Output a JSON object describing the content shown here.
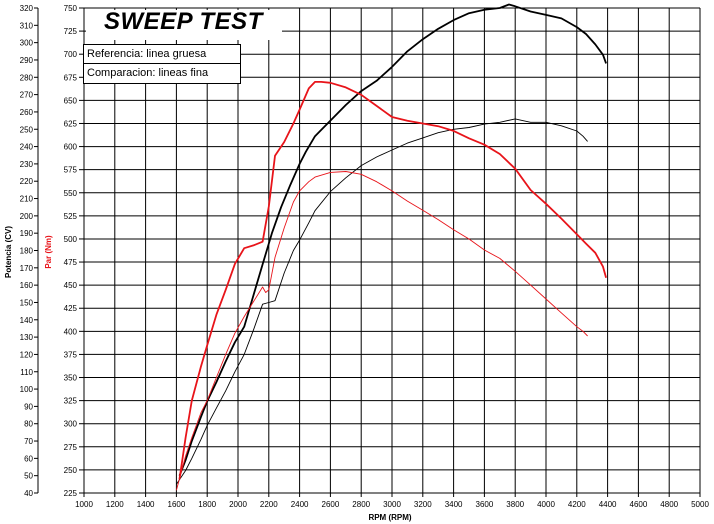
{
  "chart_data": {
    "type": "line",
    "title": "SWEEP TEST",
    "xlabel": "RPM (RPM)",
    "ylabel_left": "Potencia (CV)",
    "ylabel_right": "Par (Nm)",
    "xlim": [
      1000,
      5000
    ],
    "ylim_power": [
      40,
      320
    ],
    "ylim_torque": [
      225,
      750
    ],
    "x_ticks": [
      1000,
      1200,
      1400,
      1600,
      1800,
      2000,
      2200,
      2400,
      2600,
      2800,
      3000,
      3200,
      3400,
      3600,
      3800,
      4000,
      4200,
      4400,
      4600,
      4800,
      5000
    ],
    "power_ticks": [
      40,
      50,
      60,
      70,
      80,
      90,
      100,
      110,
      120,
      130,
      140,
      150,
      160,
      170,
      180,
      190,
      200,
      210,
      220,
      230,
      240,
      250,
      260,
      270,
      280,
      290,
      300,
      310,
      320
    ],
    "torque_ticks": [
      225,
      250,
      275,
      300,
      325,
      350,
      375,
      400,
      425,
      450,
      475,
      500,
      525,
      550,
      575,
      600,
      625,
      650,
      675,
      700,
      725,
      750
    ],
    "grid": true,
    "legend": [
      "Referencia: linea gruesa",
      "Comparacion: lineas fina"
    ],
    "colors": {
      "power": "#000000",
      "torque": "#e8141a",
      "grid": "#000000"
    },
    "series": [
      {
        "quantity": "power",
        "axis": "left",
        "weight": "thick",
        "x": [
          1620,
          1660,
          1700,
          1760,
          1800,
          1860,
          1920,
          1980,
          2040,
          2100,
          2160,
          2220,
          2280,
          2340,
          2400,
          2440,
          2500,
          2600,
          2700,
          2800,
          2900,
          3000,
          3100,
          3200,
          3300,
          3400,
          3500,
          3600,
          3700,
          3760,
          3800,
          3900,
          4000,
          4100,
          4200,
          4260,
          4320,
          4370,
          4390
        ],
        "y": [
          50,
          59,
          70,
          84,
          93,
          104,
          116,
          127,
          136,
          154,
          172,
          190,
          205,
          218,
          230,
          237,
          246,
          255,
          264,
          272,
          278,
          286,
          295,
          302,
          308,
          313,
          317,
          319,
          320,
          322,
          321,
          318,
          316,
          314,
          309,
          305,
          299,
          293,
          288
        ]
      },
      {
        "quantity": "power",
        "axis": "left",
        "weight": "thin",
        "x": [
          1600,
          1660,
          1700,
          1760,
          1800,
          1860,
          1920,
          1980,
          2040,
          2100,
          2160,
          2200,
          2240,
          2300,
          2360,
          2400,
          2460,
          2500,
          2600,
          2700,
          2800,
          2900,
          3000,
          3100,
          3200,
          3300,
          3400,
          3500,
          3600,
          3700,
          3800,
          3900,
          4000,
          4100,
          4200,
          4240,
          4270
        ],
        "y": [
          45,
          53,
          60,
          71,
          79,
          89,
          99,
          110,
          120,
          134,
          149,
          150,
          151,
          167,
          180,
          186,
          196,
          203,
          214,
          222,
          229,
          234,
          238,
          242,
          245,
          248,
          250,
          251,
          253,
          254,
          256,
          254,
          254,
          252,
          249,
          246,
          243
        ]
      },
      {
        "quantity": "torque",
        "axis": "right",
        "weight": "thick",
        "x": [
          1620,
          1660,
          1700,
          1760,
          1800,
          1860,
          1920,
          1980,
          2040,
          2100,
          2160,
          2200,
          2240,
          2300,
          2360,
          2400,
          2460,
          2500,
          2540,
          2600,
          2700,
          2800,
          2900,
          3000,
          3100,
          3200,
          3300,
          3400,
          3500,
          3600,
          3700,
          3800,
          3900,
          4000,
          4100,
          4200,
          4260,
          4320,
          4370,
          4390
        ],
        "y": [
          240,
          285,
          325,
          362,
          385,
          418,
          445,
          473,
          490,
          493,
          497,
          535,
          590,
          605,
          625,
          640,
          663,
          670,
          670,
          669,
          664,
          656,
          644,
          632,
          628,
          625,
          622,
          617,
          609,
          602,
          592,
          576,
          553,
          538,
          522,
          505,
          495,
          485,
          470,
          458
        ]
      },
      {
        "quantity": "torque",
        "axis": "right",
        "weight": "thin",
        "x": [
          1600,
          1660,
          1700,
          1760,
          1800,
          1860,
          1920,
          1980,
          2040,
          2100,
          2160,
          2180,
          2200,
          2240,
          2300,
          2360,
          2400,
          2460,
          2500,
          2600,
          2700,
          2800,
          2900,
          3000,
          3100,
          3200,
          3300,
          3400,
          3500,
          3600,
          3700,
          3800,
          3900,
          4000,
          4100,
          4200,
          4240,
          4270
        ],
        "y": [
          228,
          265,
          285,
          312,
          325,
          350,
          375,
          398,
          416,
          432,
          448,
          442,
          445,
          480,
          512,
          540,
          552,
          562,
          567,
          572,
          573,
          570,
          562,
          552,
          541,
          531,
          521,
          510,
          500,
          488,
          479,
          465,
          450,
          435,
          420,
          405,
          400,
          395
        ]
      }
    ]
  }
}
